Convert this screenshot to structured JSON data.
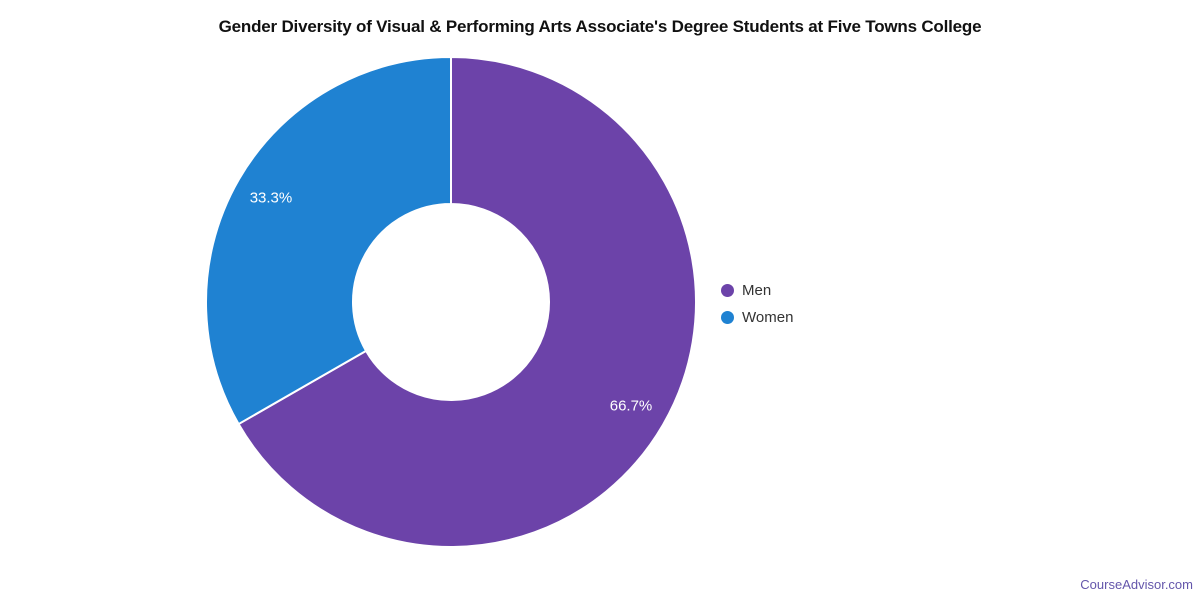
{
  "page": {
    "background_color": "#ffffff",
    "watermark": "CourseAdvisor.com",
    "watermark_color": "#6456AB"
  },
  "chart_data": {
    "type": "pie",
    "subtype": "donut",
    "title": "Gender Diversity of Visual & Performing Arts Associate's Degree Students at Five Towns College",
    "title_color": "#111111",
    "start_angle_deg": 0,
    "direction": "clockwise",
    "inner_radius_ratio": 0.4,
    "slice_border_color": "#ffffff",
    "label_color": "#ffffff",
    "legend": {
      "position": "right",
      "marker_shape": "circle",
      "text_color": "#333333"
    },
    "slices": [
      {
        "label": "Men",
        "value": 66.7,
        "display": "66.7%",
        "color": "#6C43A9"
      },
      {
        "label": "Women",
        "value": 33.3,
        "display": "33.3%",
        "color": "#1F82D2"
      }
    ]
  }
}
